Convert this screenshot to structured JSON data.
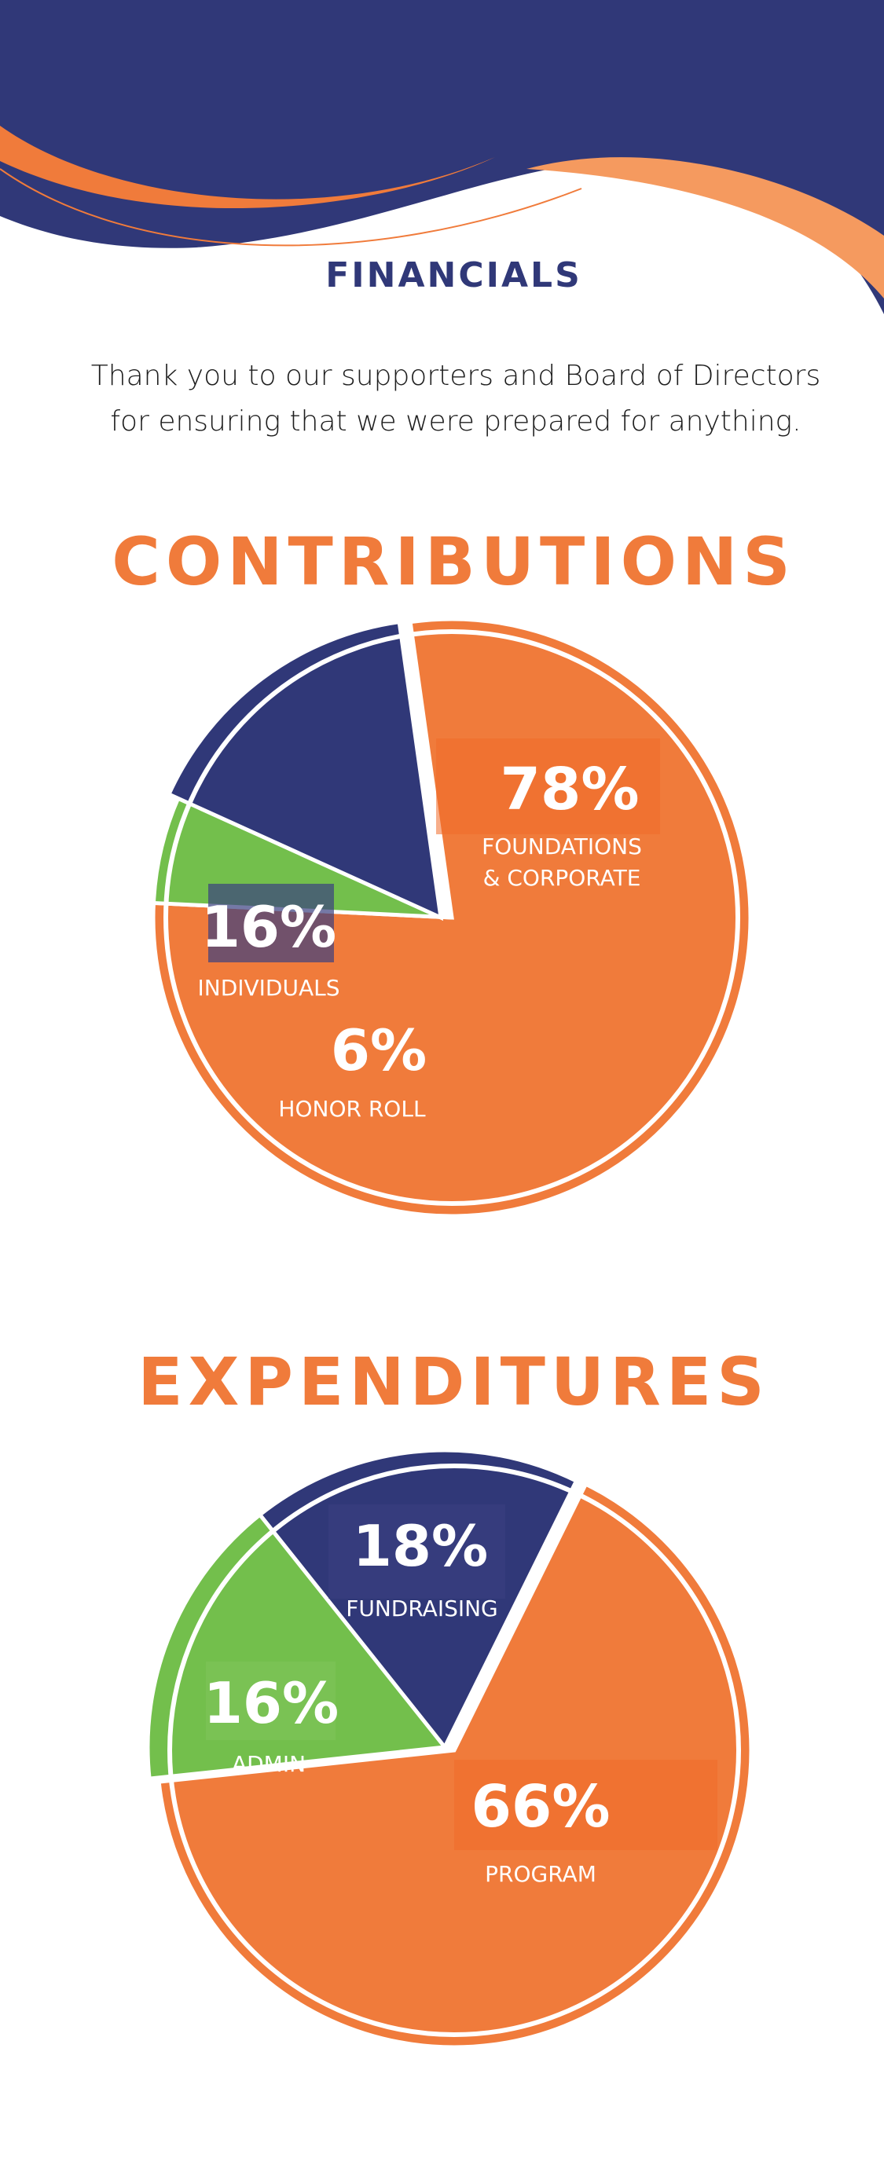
{
  "header": {
    "title": "FINANCIALS",
    "intro_lines": [
      "Thank you to our supporters and Board of Directors",
      "for ensuring that we were prepared for anything."
    ]
  },
  "colors": {
    "navy": "#303878",
    "orange": "#f07b3b",
    "orange_light": "#f59a5f",
    "green": "#73bf4c"
  },
  "chart_data": [
    {
      "type": "pie",
      "title": "CONTRIBUTIONS",
      "slices": [
        {
          "label": "FOUNDATIONS & CORPORATE",
          "value": 78,
          "display": "78%",
          "color": "#f07b3b"
        },
        {
          "label": "HONOR ROLL",
          "value": 6,
          "display": "6%",
          "color": "#73bf4c"
        },
        {
          "label": "INDIVIDUALS",
          "value": 16,
          "display": "16%",
          "color": "#303878"
        }
      ]
    },
    {
      "type": "pie",
      "title": "EXPENDITURES",
      "slices": [
        {
          "label": "FUNDRAISING",
          "value": 18,
          "display": "18%",
          "color": "#303878"
        },
        {
          "label": "PROGRAM",
          "value": 66,
          "display": "66%",
          "color": "#f07b3b"
        },
        {
          "label": "ADMIN",
          "value": 16,
          "display": "16%",
          "color": "#73bf4c"
        }
      ]
    }
  ]
}
